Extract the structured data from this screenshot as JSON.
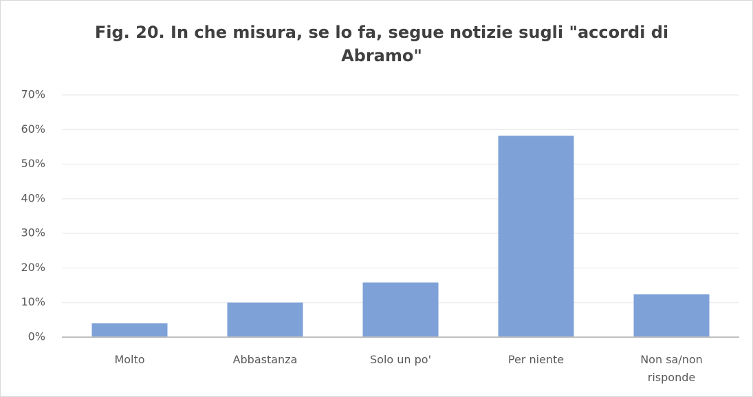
{
  "chart_data": {
    "type": "bar",
    "title": "Fig. 20. In che misura, se lo fa, segue notizie sugli \"accordi di Abramo\"",
    "categories": [
      "Molto",
      "Abbastanza",
      "Solo un po'",
      "Per niente",
      "Non sa/non risponde"
    ],
    "values": [
      4,
      10,
      15.8,
      58.2,
      12.4
    ],
    "color": "#7ea1d8",
    "ylim": [
      0,
      70
    ],
    "yticks": [
      {
        "value": 0,
        "label": "0%"
      },
      {
        "value": 10,
        "label": "10%"
      },
      {
        "value": 20,
        "label": "20%"
      },
      {
        "value": 30,
        "label": "30%"
      },
      {
        "value": 40,
        "label": "40%"
      },
      {
        "value": 50,
        "label": "50%"
      },
      {
        "value": 60,
        "label": "60%"
      },
      {
        "value": 70,
        "label": "70%"
      }
    ],
    "grid": true
  }
}
